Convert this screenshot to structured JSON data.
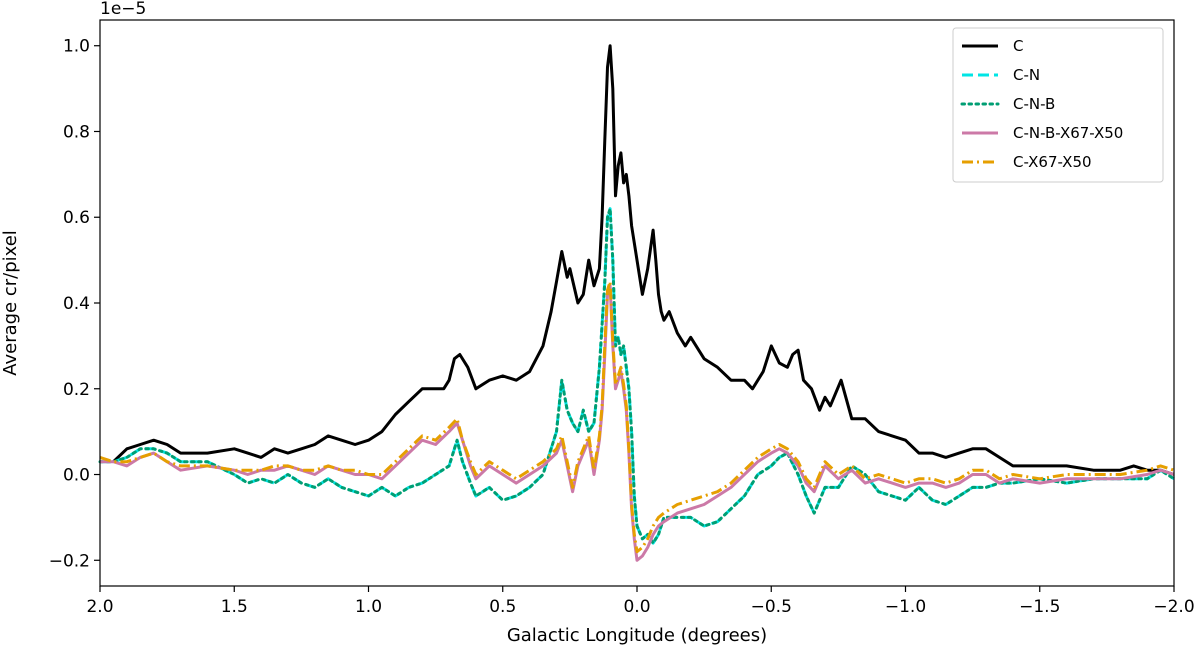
{
  "chart_data": {
    "type": "line",
    "xlabel": "Galactic Longitude (degrees)",
    "ylabel": "Average cr/pixel",
    "offset_label": "1e−5",
    "xlim": [
      2.0,
      -2.0
    ],
    "ylim": [
      -0.26,
      1.06
    ],
    "x_ticks": [
      2.0,
      1.5,
      1.0,
      0.5,
      0.0,
      -0.5,
      -1.0,
      -1.5,
      -2.0
    ],
    "x_tick_labels": [
      "2.0",
      "1.5",
      "1.0",
      "0.5",
      "0.0",
      "−0.5",
      "−1.0",
      "−1.5",
      "−2.0"
    ],
    "y_ticks": [
      -0.2,
      0.0,
      0.2,
      0.4,
      0.6,
      0.8,
      1.0
    ],
    "y_tick_labels": [
      "−0.2",
      "0.0",
      "0.2",
      "0.4",
      "0.6",
      "0.8",
      "1.0"
    ],
    "grid": false,
    "legend_position": "top-right",
    "series": [
      {
        "name": "C",
        "color": "#000000",
        "style": "solid",
        "x": [
          1.95,
          1.9,
          1.85,
          1.8,
          1.75,
          1.7,
          1.6,
          1.5,
          1.45,
          1.4,
          1.35,
          1.3,
          1.25,
          1.2,
          1.15,
          1.1,
          1.05,
          1.0,
          0.95,
          0.9,
          0.85,
          0.8,
          0.75,
          0.72,
          0.7,
          0.68,
          0.66,
          0.63,
          0.6,
          0.55,
          0.5,
          0.45,
          0.4,
          0.35,
          0.32,
          0.3,
          0.28,
          0.26,
          0.25,
          0.22,
          0.2,
          0.18,
          0.16,
          0.14,
          0.13,
          0.12,
          0.11,
          0.1,
          0.09,
          0.08,
          0.07,
          0.06,
          0.05,
          0.04,
          0.03,
          0.02,
          0.0,
          -0.02,
          -0.04,
          -0.06,
          -0.07,
          -0.08,
          -0.09,
          -0.1,
          -0.12,
          -0.15,
          -0.18,
          -0.2,
          -0.25,
          -0.3,
          -0.35,
          -0.4,
          -0.43,
          -0.47,
          -0.5,
          -0.53,
          -0.56,
          -0.58,
          -0.6,
          -0.62,
          -0.65,
          -0.68,
          -0.7,
          -0.72,
          -0.76,
          -0.8,
          -0.85,
          -0.9,
          -0.95,
          -1.0,
          -1.05,
          -1.1,
          -1.15,
          -1.2,
          -1.25,
          -1.3,
          -1.35,
          -1.4,
          -1.5,
          -1.6,
          -1.7,
          -1.8,
          -1.85,
          -1.9,
          -1.95,
          -2.0
        ],
        "y": [
          0.03,
          0.06,
          0.07,
          0.08,
          0.07,
          0.05,
          0.05,
          0.06,
          0.05,
          0.04,
          0.06,
          0.05,
          0.06,
          0.07,
          0.09,
          0.08,
          0.07,
          0.08,
          0.1,
          0.14,
          0.17,
          0.2,
          0.2,
          0.2,
          0.22,
          0.27,
          0.28,
          0.25,
          0.2,
          0.22,
          0.23,
          0.22,
          0.24,
          0.3,
          0.38,
          0.45,
          0.52,
          0.46,
          0.48,
          0.4,
          0.42,
          0.5,
          0.44,
          0.48,
          0.6,
          0.78,
          0.95,
          1.0,
          0.9,
          0.65,
          0.72,
          0.75,
          0.68,
          0.7,
          0.65,
          0.58,
          0.5,
          0.42,
          0.48,
          0.57,
          0.5,
          0.42,
          0.38,
          0.36,
          0.38,
          0.33,
          0.3,
          0.32,
          0.27,
          0.25,
          0.22,
          0.22,
          0.2,
          0.24,
          0.3,
          0.26,
          0.25,
          0.28,
          0.29,
          0.22,
          0.2,
          0.15,
          0.18,
          0.16,
          0.22,
          0.13,
          0.13,
          0.1,
          0.09,
          0.08,
          0.05,
          0.05,
          0.04,
          0.05,
          0.06,
          0.06,
          0.04,
          0.02,
          0.02,
          0.02,
          0.01,
          0.01,
          0.02,
          0.01,
          0.01,
          0.0
        ]
      },
      {
        "name": "C-N",
        "color": "#00e5e5",
        "style": "dashed",
        "x": [
          2.0,
          1.95,
          1.9,
          1.85,
          1.8,
          1.75,
          1.7,
          1.6,
          1.5,
          1.45,
          1.4,
          1.35,
          1.3,
          1.25,
          1.2,
          1.15,
          1.1,
          1.05,
          1.0,
          0.95,
          0.9,
          0.85,
          0.8,
          0.75,
          0.7,
          0.67,
          0.65,
          0.62,
          0.6,
          0.55,
          0.5,
          0.45,
          0.4,
          0.35,
          0.3,
          0.28,
          0.26,
          0.24,
          0.22,
          0.2,
          0.18,
          0.16,
          0.14,
          0.13,
          0.12,
          0.11,
          0.1,
          0.09,
          0.08,
          0.07,
          0.06,
          0.05,
          0.04,
          0.03,
          0.02,
          0.01,
          0.0,
          -0.02,
          -0.04,
          -0.06,
          -0.08,
          -0.1,
          -0.15,
          -0.2,
          -0.25,
          -0.3,
          -0.35,
          -0.4,
          -0.45,
          -0.5,
          -0.53,
          -0.56,
          -0.6,
          -0.63,
          -0.66,
          -0.7,
          -0.75,
          -0.8,
          -0.85,
          -0.9,
          -0.95,
          -1.0,
          -1.05,
          -1.1,
          -1.15,
          -1.2,
          -1.25,
          -1.3,
          -1.35,
          -1.4,
          -1.5,
          -1.6,
          -1.7,
          -1.8,
          -1.9,
          -1.95,
          -2.0
        ],
        "y": [
          0.03,
          0.03,
          0.04,
          0.06,
          0.06,
          0.05,
          0.03,
          0.03,
          0.0,
          -0.02,
          -0.01,
          -0.02,
          0.0,
          -0.02,
          -0.03,
          -0.01,
          -0.03,
          -0.04,
          -0.05,
          -0.03,
          -0.05,
          -0.03,
          -0.02,
          0.0,
          0.02,
          0.08,
          0.03,
          -0.02,
          -0.05,
          -0.03,
          -0.06,
          -0.05,
          -0.03,
          0.0,
          0.1,
          0.22,
          0.15,
          0.12,
          0.1,
          0.15,
          0.1,
          0.12,
          0.25,
          0.35,
          0.45,
          0.6,
          0.62,
          0.5,
          0.3,
          0.32,
          0.28,
          0.3,
          0.25,
          0.2,
          0.1,
          -0.05,
          -0.12,
          -0.15,
          -0.14,
          -0.16,
          -0.14,
          -0.1,
          -0.1,
          -0.1,
          -0.12,
          -0.11,
          -0.08,
          -0.05,
          0.0,
          0.02,
          0.04,
          0.05,
          0.0,
          -0.05,
          -0.09,
          -0.03,
          -0.03,
          0.02,
          0.0,
          -0.04,
          -0.05,
          -0.06,
          -0.03,
          -0.06,
          -0.07,
          -0.05,
          -0.03,
          -0.03,
          -0.02,
          -0.02,
          -0.01,
          -0.02,
          -0.01,
          -0.01,
          -0.01,
          0.01,
          -0.01
        ]
      },
      {
        "name": "C-N-B",
        "color": "#009e73",
        "style": "dotted",
        "x": [
          2.0,
          1.95,
          1.9,
          1.85,
          1.8,
          1.75,
          1.7,
          1.6,
          1.5,
          1.45,
          1.4,
          1.35,
          1.3,
          1.25,
          1.2,
          1.15,
          1.1,
          1.05,
          1.0,
          0.95,
          0.9,
          0.85,
          0.8,
          0.75,
          0.7,
          0.67,
          0.65,
          0.62,
          0.6,
          0.55,
          0.5,
          0.45,
          0.4,
          0.35,
          0.3,
          0.28,
          0.26,
          0.24,
          0.22,
          0.2,
          0.18,
          0.16,
          0.14,
          0.13,
          0.12,
          0.11,
          0.1,
          0.09,
          0.08,
          0.07,
          0.06,
          0.05,
          0.04,
          0.03,
          0.02,
          0.01,
          0.0,
          -0.02,
          -0.04,
          -0.06,
          -0.08,
          -0.1,
          -0.15,
          -0.2,
          -0.25,
          -0.3,
          -0.35,
          -0.4,
          -0.45,
          -0.5,
          -0.53,
          -0.56,
          -0.6,
          -0.63,
          -0.66,
          -0.7,
          -0.75,
          -0.8,
          -0.85,
          -0.9,
          -0.95,
          -1.0,
          -1.05,
          -1.1,
          -1.15,
          -1.2,
          -1.25,
          -1.3,
          -1.35,
          -1.4,
          -1.5,
          -1.6,
          -1.7,
          -1.8,
          -1.9,
          -1.95,
          -2.0
        ],
        "y": [
          0.03,
          0.03,
          0.04,
          0.06,
          0.06,
          0.05,
          0.03,
          0.03,
          0.0,
          -0.02,
          -0.01,
          -0.02,
          0.0,
          -0.02,
          -0.03,
          -0.01,
          -0.03,
          -0.04,
          -0.05,
          -0.03,
          -0.05,
          -0.03,
          -0.02,
          0.0,
          0.02,
          0.08,
          0.03,
          -0.02,
          -0.05,
          -0.03,
          -0.06,
          -0.05,
          -0.03,
          0.0,
          0.1,
          0.22,
          0.15,
          0.12,
          0.1,
          0.15,
          0.1,
          0.12,
          0.25,
          0.35,
          0.45,
          0.6,
          0.62,
          0.5,
          0.3,
          0.32,
          0.28,
          0.3,
          0.25,
          0.2,
          0.1,
          -0.05,
          -0.12,
          -0.15,
          -0.14,
          -0.16,
          -0.14,
          -0.1,
          -0.1,
          -0.1,
          -0.12,
          -0.11,
          -0.08,
          -0.05,
          0.0,
          0.02,
          0.04,
          0.05,
          0.0,
          -0.05,
          -0.09,
          -0.03,
          -0.03,
          0.02,
          0.0,
          -0.04,
          -0.05,
          -0.06,
          -0.03,
          -0.06,
          -0.07,
          -0.05,
          -0.03,
          -0.03,
          -0.02,
          -0.02,
          -0.01,
          -0.02,
          -0.01,
          -0.01,
          -0.01,
          0.01,
          -0.01
        ]
      },
      {
        "name": "C-N-B-X67-X50",
        "color": "#cc79a7",
        "style": "solid",
        "x": [
          2.0,
          1.95,
          1.9,
          1.85,
          1.8,
          1.75,
          1.7,
          1.6,
          1.5,
          1.45,
          1.4,
          1.35,
          1.3,
          1.25,
          1.2,
          1.15,
          1.1,
          1.05,
          1.0,
          0.95,
          0.9,
          0.85,
          0.8,
          0.75,
          0.7,
          0.67,
          0.65,
          0.62,
          0.6,
          0.55,
          0.5,
          0.45,
          0.4,
          0.35,
          0.3,
          0.28,
          0.26,
          0.24,
          0.22,
          0.2,
          0.18,
          0.16,
          0.14,
          0.13,
          0.12,
          0.11,
          0.1,
          0.09,
          0.08,
          0.07,
          0.06,
          0.05,
          0.04,
          0.03,
          0.02,
          0.01,
          0.0,
          -0.02,
          -0.04,
          -0.06,
          -0.08,
          -0.1,
          -0.15,
          -0.2,
          -0.25,
          -0.3,
          -0.35,
          -0.4,
          -0.45,
          -0.5,
          -0.53,
          -0.56,
          -0.6,
          -0.63,
          -0.66,
          -0.7,
          -0.75,
          -0.8,
          -0.85,
          -0.9,
          -0.95,
          -1.0,
          -1.05,
          -1.1,
          -1.15,
          -1.2,
          -1.25,
          -1.3,
          -1.35,
          -1.4,
          -1.5,
          -1.6,
          -1.7,
          -1.8,
          -1.9,
          -1.95,
          -2.0
        ],
        "y": [
          0.03,
          0.03,
          0.02,
          0.04,
          0.05,
          0.03,
          0.01,
          0.02,
          0.01,
          0.0,
          0.01,
          0.01,
          0.02,
          0.01,
          0.0,
          0.02,
          0.01,
          0.0,
          0.0,
          -0.01,
          0.02,
          0.05,
          0.08,
          0.07,
          0.1,
          0.12,
          0.08,
          0.02,
          -0.01,
          0.02,
          0.0,
          -0.02,
          0.0,
          0.02,
          0.05,
          0.08,
          0.02,
          -0.04,
          0.02,
          0.05,
          0.08,
          0.0,
          0.08,
          0.15,
          0.28,
          0.42,
          0.44,
          0.3,
          0.2,
          0.22,
          0.24,
          0.2,
          0.15,
          0.05,
          -0.08,
          -0.15,
          -0.2,
          -0.19,
          -0.17,
          -0.14,
          -0.12,
          -0.11,
          -0.09,
          -0.08,
          -0.07,
          -0.05,
          -0.03,
          0.0,
          0.03,
          0.05,
          0.06,
          0.05,
          0.02,
          -0.02,
          -0.04,
          0.02,
          -0.01,
          0.01,
          -0.02,
          -0.01,
          -0.02,
          -0.03,
          -0.02,
          -0.02,
          -0.03,
          -0.02,
          0.0,
          0.0,
          -0.02,
          -0.01,
          -0.02,
          -0.01,
          -0.01,
          -0.01,
          0.0,
          0.01,
          0.0
        ]
      },
      {
        "name": "C-X67-X50",
        "color": "#e69f00",
        "style": "dashdot",
        "x": [
          2.0,
          1.95,
          1.9,
          1.85,
          1.8,
          1.75,
          1.7,
          1.6,
          1.5,
          1.45,
          1.4,
          1.35,
          1.3,
          1.25,
          1.2,
          1.15,
          1.1,
          1.05,
          1.0,
          0.95,
          0.9,
          0.85,
          0.8,
          0.75,
          0.7,
          0.67,
          0.65,
          0.62,
          0.6,
          0.55,
          0.5,
          0.45,
          0.4,
          0.35,
          0.3,
          0.28,
          0.26,
          0.24,
          0.22,
          0.2,
          0.18,
          0.16,
          0.14,
          0.13,
          0.12,
          0.11,
          0.1,
          0.09,
          0.08,
          0.07,
          0.06,
          0.05,
          0.04,
          0.03,
          0.02,
          0.01,
          0.0,
          -0.02,
          -0.04,
          -0.06,
          -0.08,
          -0.1,
          -0.15,
          -0.2,
          -0.25,
          -0.3,
          -0.35,
          -0.4,
          -0.45,
          -0.5,
          -0.53,
          -0.56,
          -0.6,
          -0.63,
          -0.66,
          -0.7,
          -0.75,
          -0.8,
          -0.85,
          -0.9,
          -0.95,
          -1.0,
          -1.05,
          -1.1,
          -1.15,
          -1.2,
          -1.25,
          -1.3,
          -1.35,
          -1.4,
          -1.5,
          -1.6,
          -1.7,
          -1.8,
          -1.9,
          -1.95,
          -2.0
        ],
        "y": [
          0.04,
          0.03,
          0.03,
          0.04,
          0.05,
          0.03,
          0.02,
          0.02,
          0.01,
          0.01,
          0.01,
          0.02,
          0.02,
          0.01,
          0.01,
          0.02,
          0.01,
          0.01,
          0.0,
          0.0,
          0.03,
          0.06,
          0.09,
          0.08,
          0.11,
          0.13,
          0.08,
          0.03,
          0.0,
          0.03,
          0.01,
          -0.01,
          0.01,
          0.03,
          0.06,
          0.09,
          0.03,
          -0.03,
          0.03,
          0.06,
          0.09,
          0.01,
          0.09,
          0.16,
          0.3,
          0.43,
          0.45,
          0.31,
          0.21,
          0.23,
          0.25,
          0.21,
          0.16,
          0.06,
          -0.07,
          -0.14,
          -0.18,
          -0.17,
          -0.15,
          -0.12,
          -0.1,
          -0.09,
          -0.07,
          -0.06,
          -0.05,
          -0.04,
          -0.02,
          0.01,
          0.04,
          0.06,
          0.07,
          0.06,
          0.03,
          -0.01,
          -0.03,
          0.03,
          0.0,
          0.02,
          -0.01,
          0.0,
          -0.01,
          -0.02,
          -0.01,
          -0.01,
          -0.02,
          -0.01,
          0.01,
          0.01,
          -0.01,
          0.0,
          -0.01,
          0.0,
          0.0,
          0.0,
          0.01,
          0.02,
          0.01
        ]
      }
    ]
  }
}
